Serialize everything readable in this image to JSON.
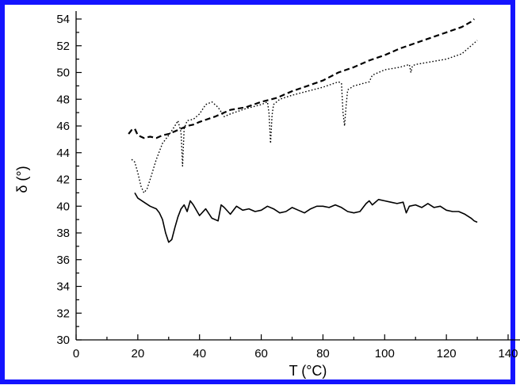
{
  "chart_data": {
    "type": "line",
    "title": "",
    "xlabel": "T (°C)",
    "ylabel": "δ (°)",
    "xlim": [
      0,
      140
    ],
    "ylim": [
      30,
      54
    ],
    "xticks": [
      0,
      20,
      40,
      60,
      80,
      100,
      120,
      140
    ],
    "xtick_labels": [
      "0",
      "20",
      "40",
      "60",
      "80",
      "100",
      "120",
      "140"
    ],
    "yticks": [
      30,
      32,
      34,
      36,
      38,
      40,
      42,
      44,
      46,
      48,
      50,
      52,
      54
    ],
    "ytick_labels": [
      "30",
      "32",
      "34",
      "36",
      "38",
      "40",
      "42",
      "44",
      "46",
      "48",
      "50",
      "52",
      "54"
    ],
    "frame_color": "#1414ff",
    "grid": false,
    "legend": "none",
    "series": [
      {
        "style": "solid",
        "x": [
          19,
          20,
          22,
          24,
          26,
          27,
          28,
          29,
          30,
          31,
          32,
          33,
          34,
          35,
          36,
          37,
          38,
          40,
          42,
          44,
          46,
          47,
          48,
          50,
          52,
          54,
          56,
          58,
          60,
          62,
          64,
          66,
          68,
          70,
          72,
          74,
          76,
          78,
          80,
          82,
          84,
          86,
          88,
          90,
          92,
          94,
          95,
          96,
          98,
          100,
          102,
          104,
          106,
          107,
          108,
          110,
          112,
          114,
          116,
          118,
          120,
          122,
          124,
          126,
          128,
          129,
          130
        ],
        "y": [
          41.0,
          40.6,
          40.3,
          40.0,
          39.8,
          39.5,
          39.0,
          38.0,
          37.3,
          37.5,
          38.4,
          39.2,
          39.8,
          40.1,
          39.6,
          40.4,
          40.1,
          39.3,
          39.8,
          39.1,
          38.9,
          40.1,
          39.9,
          39.4,
          40.0,
          39.7,
          39.8,
          39.6,
          39.7,
          40.0,
          39.8,
          39.5,
          39.6,
          39.9,
          39.7,
          39.5,
          39.8,
          40.0,
          40.0,
          39.9,
          40.1,
          39.9,
          39.6,
          39.5,
          39.6,
          40.2,
          40.4,
          40.1,
          40.5,
          40.4,
          40.3,
          40.2,
          40.3,
          39.5,
          40.0,
          40.1,
          39.9,
          40.2,
          39.9,
          40.0,
          39.7,
          39.6,
          39.6,
          39.4,
          39.1,
          38.9,
          38.8
        ]
      },
      {
        "style": "dashed",
        "x": [
          17,
          18,
          19,
          20,
          22,
          24,
          26,
          28,
          30,
          32,
          34,
          36,
          38,
          40,
          45,
          50,
          55,
          60,
          65,
          70,
          75,
          80,
          85,
          90,
          95,
          100,
          105,
          110,
          115,
          120,
          125,
          128,
          129
        ],
        "y": [
          45.4,
          45.7,
          45.8,
          45.3,
          45.1,
          45.2,
          45.1,
          45.3,
          45.4,
          45.6,
          45.8,
          46.0,
          46.1,
          46.3,
          46.7,
          47.2,
          47.4,
          47.8,
          48.1,
          48.6,
          49.0,
          49.4,
          50.0,
          50.4,
          50.9,
          51.3,
          51.8,
          52.2,
          52.6,
          53.0,
          53.4,
          53.8,
          54.0
        ]
      },
      {
        "style": "dotted",
        "x": [
          18,
          19,
          20,
          21,
          22,
          23,
          24,
          26,
          28,
          30,
          32,
          33,
          34,
          34.5,
          35,
          36,
          38,
          40,
          42,
          44,
          46,
          48,
          50,
          55,
          60,
          62,
          62.5,
          63,
          63.5,
          64,
          66,
          70,
          75,
          80,
          85,
          86,
          86.5,
          87,
          87.5,
          88,
          90,
          95,
          96,
          100,
          105,
          108,
          108.5,
          109,
          110,
          115,
          120,
          125,
          128,
          130
        ],
        "y": [
          43.5,
          43.3,
          42.5,
          41.5,
          41.0,
          41.3,
          42.0,
          43.5,
          44.7,
          45.3,
          46.0,
          46.4,
          45.5,
          43.0,
          45.8,
          46.4,
          46.5,
          46.9,
          47.6,
          47.8,
          47.4,
          46.7,
          46.9,
          47.3,
          47.6,
          47.8,
          47.0,
          44.7,
          46.8,
          47.6,
          48.0,
          48.3,
          48.6,
          48.9,
          49.3,
          49.2,
          47.0,
          46.0,
          47.5,
          48.7,
          49.0,
          49.3,
          49.8,
          50.2,
          50.4,
          50.6,
          50.0,
          50.5,
          50.6,
          50.8,
          51.0,
          51.4,
          52.0,
          52.4
        ]
      }
    ]
  }
}
